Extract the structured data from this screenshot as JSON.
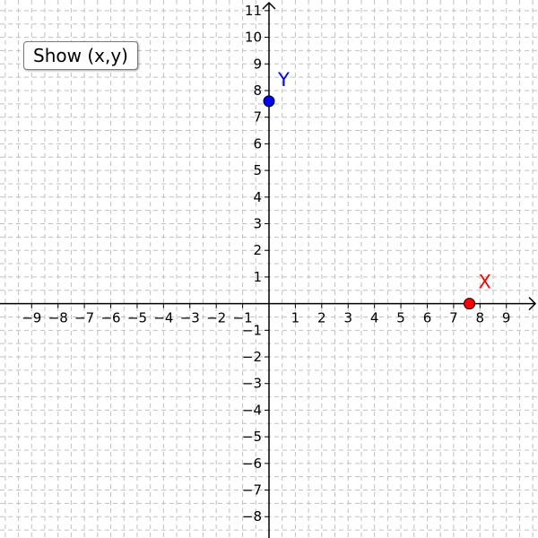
{
  "show_button": {
    "label": "Show (x,y)"
  },
  "graph": {
    "x_range": [
      -10.2,
      10.2
    ],
    "y_range": [
      -8.8,
      11.4
    ],
    "x_ticks": [
      -9,
      -8,
      -7,
      -6,
      -5,
      -4,
      -3,
      -2,
      -1,
      1,
      2,
      3,
      4,
      5,
      6,
      7,
      8,
      9
    ],
    "y_ticks": [
      -8,
      -7,
      -6,
      -5,
      -4,
      -3,
      -2,
      -1,
      1,
      2,
      3,
      4,
      5,
      6,
      7,
      8,
      9,
      10,
      11
    ],
    "grid": "dashed, 0.5 unit spacing",
    "points": [
      {
        "name": "X",
        "x": 7.6,
        "y": 0,
        "color": "#ff0000"
      },
      {
        "name": "Y",
        "x": 0,
        "y": 7.6,
        "color": "#0000ff"
      }
    ],
    "colors": {
      "axis": "#000000",
      "grid": "#c0c0c0",
      "point_outline": "#000000"
    }
  }
}
